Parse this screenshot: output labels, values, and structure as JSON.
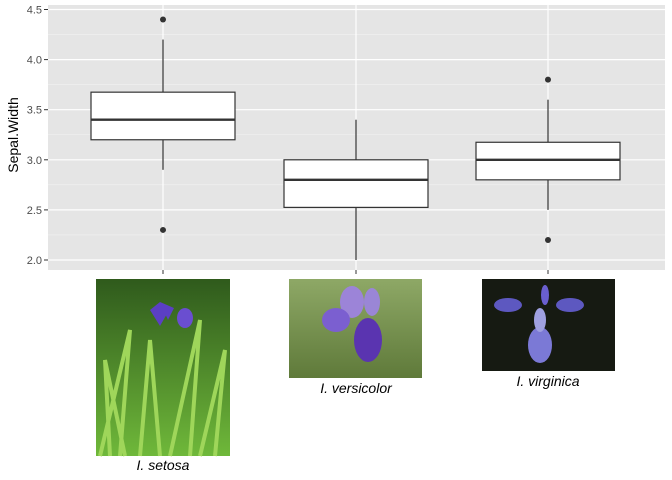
{
  "chart_data": {
    "type": "boxplot",
    "ylabel": "Sepal.Width",
    "xlabel": "",
    "ylim": [
      1.95,
      4.51
    ],
    "yticks": [
      "2.0",
      "2.5",
      "3.0",
      "3.5",
      "4.0",
      "4.5"
    ],
    "grid": true,
    "categories": [
      "I. setosa",
      "I. versicolor",
      "I. virginica"
    ],
    "category_images": [
      "iris-setosa-photo",
      "iris-versicolor-photo",
      "iris-virginica-photo"
    ],
    "boxes": [
      {
        "name": "I. setosa",
        "lower_whisker": 2.9,
        "q1": 3.2,
        "median": 3.4,
        "q3": 3.675,
        "upper_whisker": 4.2,
        "outliers": [
          4.4,
          2.3
        ]
      },
      {
        "name": "I. versicolor",
        "lower_whisker": 2.0,
        "q1": 2.525,
        "median": 2.8,
        "q3": 3.0,
        "upper_whisker": 3.4,
        "outliers": []
      },
      {
        "name": "I. virginica",
        "lower_whisker": 2.5,
        "q1": 2.8,
        "median": 3.0,
        "q3": 3.175,
        "upper_whisker": 3.6,
        "outliers": [
          3.8,
          2.2
        ]
      }
    ],
    "colors": {
      "panel": "#e5e5e5",
      "grid": "#ffffff",
      "box_fill": "#ffffff",
      "box_line": "#333333"
    }
  }
}
